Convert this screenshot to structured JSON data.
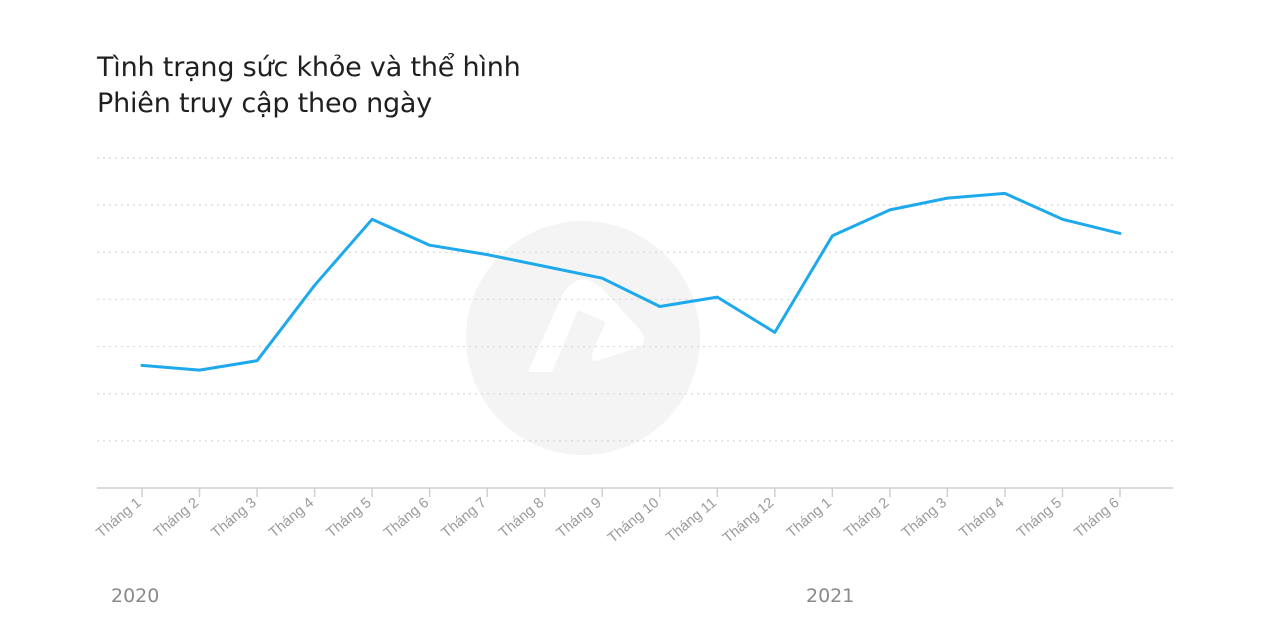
{
  "title": "Tình trạng sức khỏe và thể hình",
  "subtitle": "Phiên truy cập theo ngày",
  "years": [
    "2020",
    "2021"
  ],
  "colors": {
    "line": "#1da9ec",
    "grid": "#d7d7d7",
    "axis": "#cfcfcf",
    "tick_label": "#9a9a9a",
    "watermark": "#f4f4f4"
  },
  "chart_data": {
    "type": "line",
    "title": "Tình trạng sức khỏe và thể hình",
    "subtitle": "Phiên truy cập theo ngày",
    "categories": [
      "Tháng 1",
      "Tháng 2",
      "Tháng 3",
      "Tháng 4",
      "Tháng 5",
      "Tháng 6",
      "Tháng 7",
      "Tháng 8",
      "Tháng 9",
      "Tháng 10",
      "Tháng 11",
      "Tháng 12",
      "Tháng 1",
      "Tháng 2",
      "Tháng 3",
      "Tháng 4",
      "Tháng 5",
      "Tháng 6"
    ],
    "category_groups": [
      {
        "label": "2020",
        "count": 12
      },
      {
        "label": "2021",
        "count": 6
      }
    ],
    "series": [
      {
        "values": [
          26,
          25,
          27,
          43,
          57,
          51.5,
          49.5,
          47,
          44.5,
          38.5,
          40.5,
          33,
          53.5,
          59,
          61.5,
          62.5,
          57,
          54
        ]
      }
    ],
    "ylim": [
      0,
      70
    ],
    "grid": true,
    "y_tick_labels_shown": false,
    "xlabel": "",
    "ylabel": ""
  }
}
